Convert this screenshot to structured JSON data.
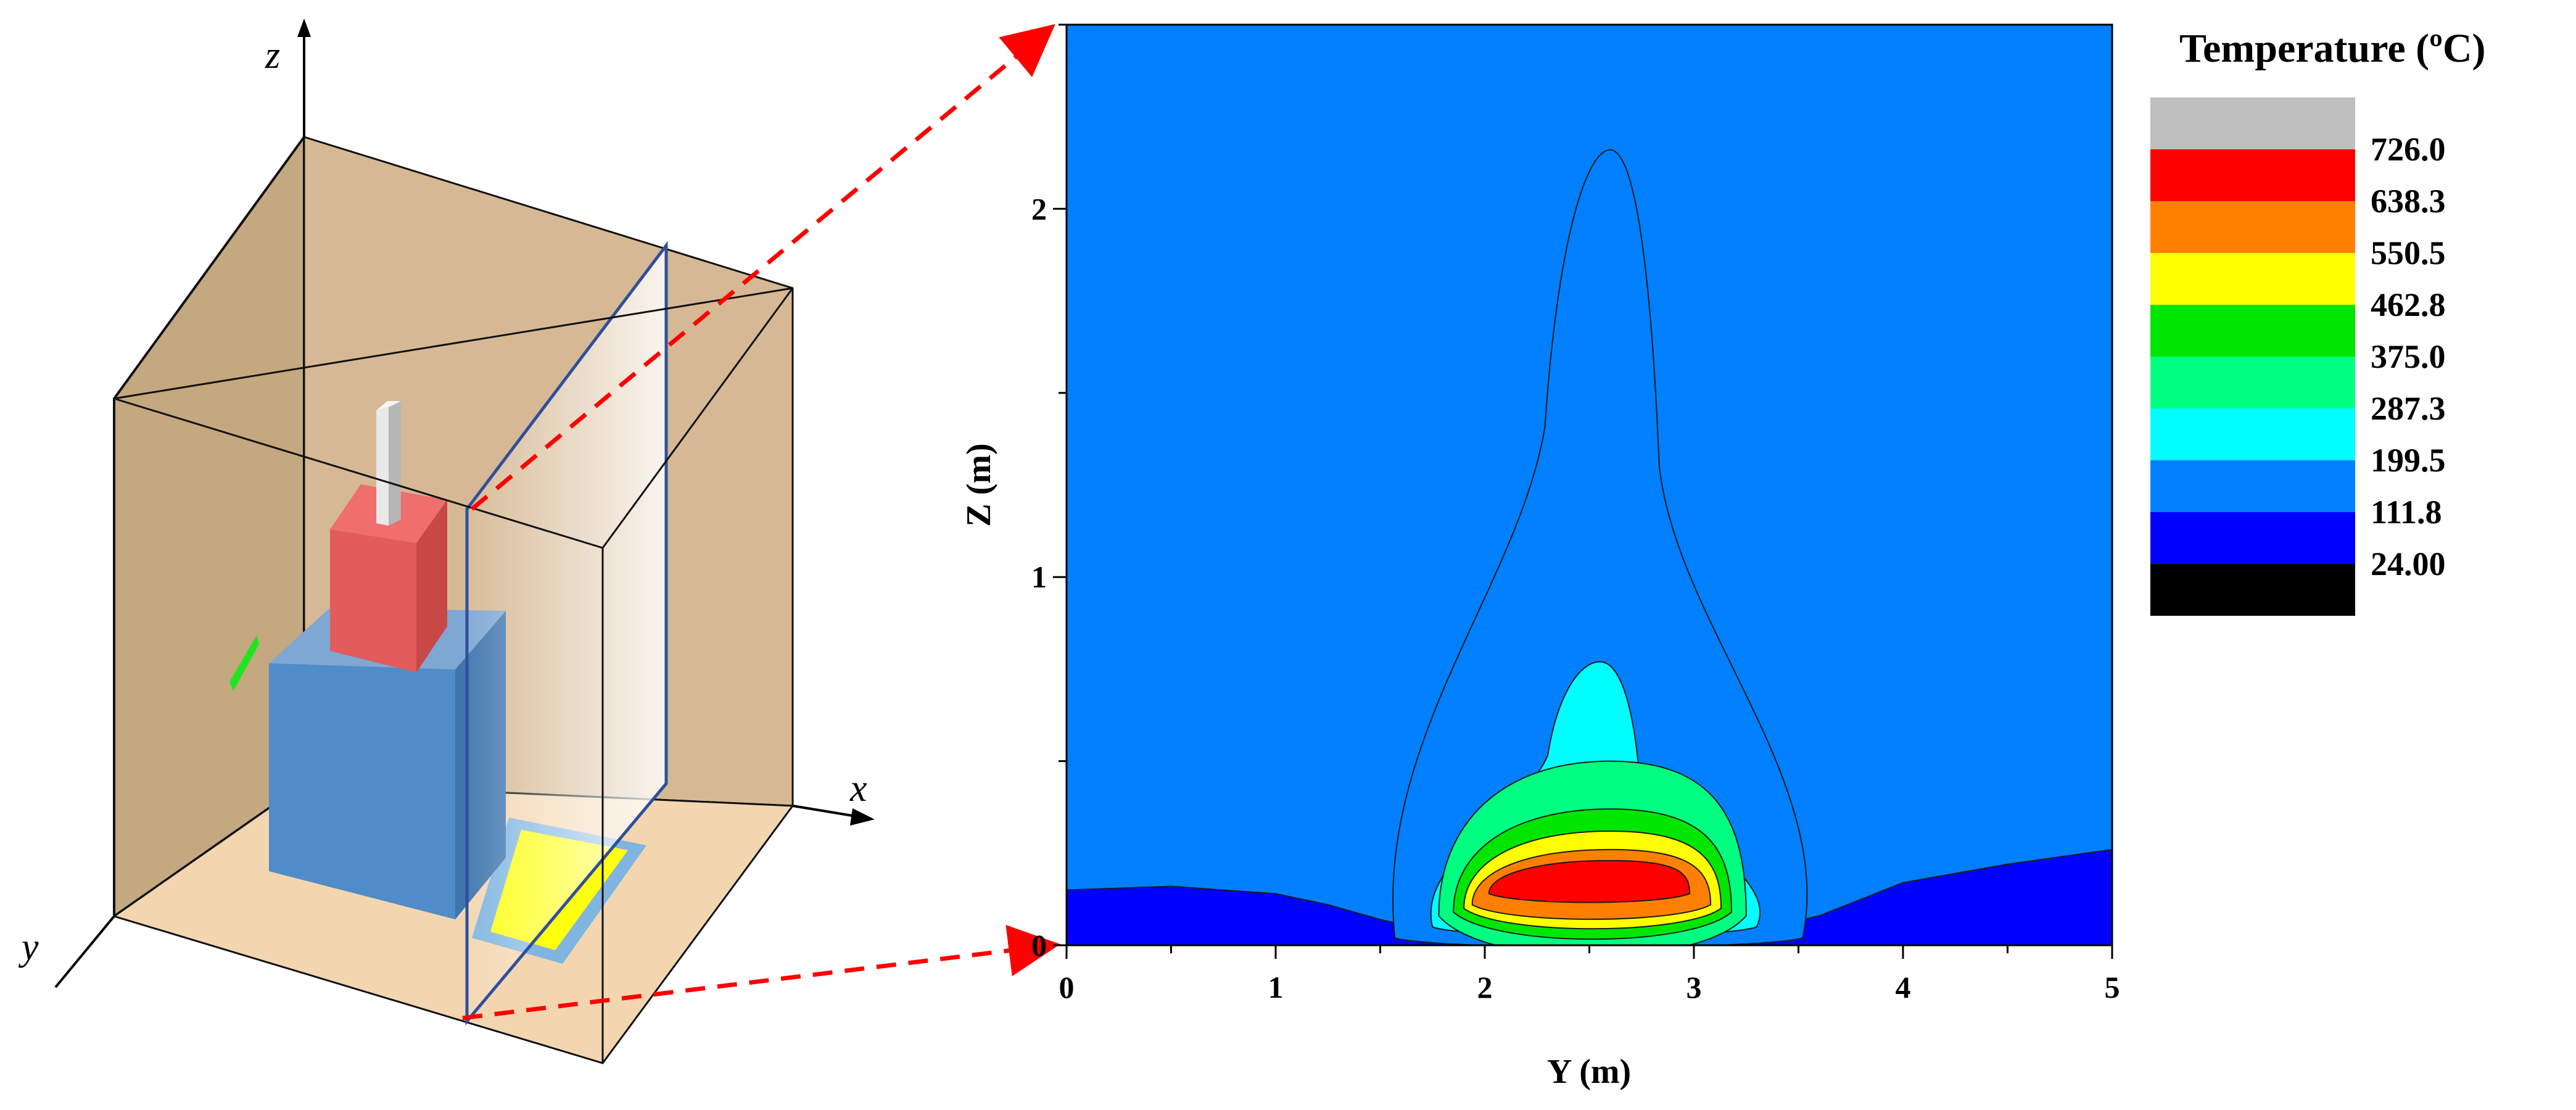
{
  "schematic": {
    "axis_labels": {
      "x": "x",
      "y": "y",
      "z": "z"
    }
  },
  "chart_data": {
    "type": "heatmap",
    "subtype": "filled-contour",
    "xlabel": "Y (m)",
    "ylabel": "Z (m)",
    "xlim": [
      0,
      5
    ],
    "ylim": [
      0,
      2.5
    ],
    "x_ticks": [
      "0",
      "1",
      "2",
      "3",
      "4",
      "5"
    ],
    "y_ticks": [
      "0",
      "1",
      "2"
    ],
    "grid": false,
    "legend": {
      "title": "Temperature (ºC)",
      "placement": "right",
      "levels": [
        "726.0",
        "638.3",
        "550.5",
        "462.8",
        "375.0",
        "287.3",
        "199.5",
        "111.8",
        "24.00"
      ],
      "colors": [
        "#bfbfbf",
        "#ff0000",
        "#ff8000",
        "#ffff00",
        "#00e600",
        "#00ff80",
        "#00ffff",
        "#0080ff",
        "#0000ff",
        "#000000"
      ]
    },
    "contours": [
      {
        "level": "111.8",
        "color": "#0000ff",
        "y": [
          0,
          0.5,
          1.0,
          1.25,
          1.5,
          1.8,
          2.1,
          2.4,
          2.7,
          3.0,
          3.3,
          3.6,
          4.0,
          4.5,
          5
        ],
        "z": [
          0.15,
          0.16,
          0.14,
          0.11,
          0.07,
          0.03,
          0.01,
          0.0,
          0.0,
          0.01,
          0.04,
          0.08,
          0.17,
          0.22,
          0.26
        ]
      },
      {
        "level": "199.5",
        "peak_y": 2.6,
        "peak_z": 2.16,
        "base_y": [
          1.57,
          3.52
        ],
        "base_z": 0.02
      },
      {
        "level": "287.3",
        "peak_y": 2.55,
        "peak_z": 0.77,
        "base_y": [
          1.75,
          3.3
        ],
        "base_z": 0.05
      },
      {
        "level": "375.0",
        "peak_y": 2.6,
        "peak_z": 0.5,
        "base_y": [
          1.78,
          3.25
        ],
        "base_z": 0.08
      },
      {
        "level": "462.8",
        "peak_y": 2.6,
        "peak_z": 0.37,
        "base_y": [
          1.85,
          3.18
        ],
        "base_z": 0.09
      },
      {
        "level": "550.5",
        "peak_y": 2.6,
        "peak_z": 0.31,
        "base_y": [
          1.9,
          3.13
        ],
        "base_z": 0.1
      },
      {
        "level": "638.3",
        "peak_y": 2.6,
        "peak_z": 0.26,
        "base_y": [
          1.94,
          3.08
        ],
        "base_z": 0.11
      },
      {
        "level": "726.0",
        "peak_y": 2.6,
        "peak_z": 0.23,
        "base_y": [
          2.02,
          2.98
        ],
        "base_z": 0.14
      }
    ]
  }
}
